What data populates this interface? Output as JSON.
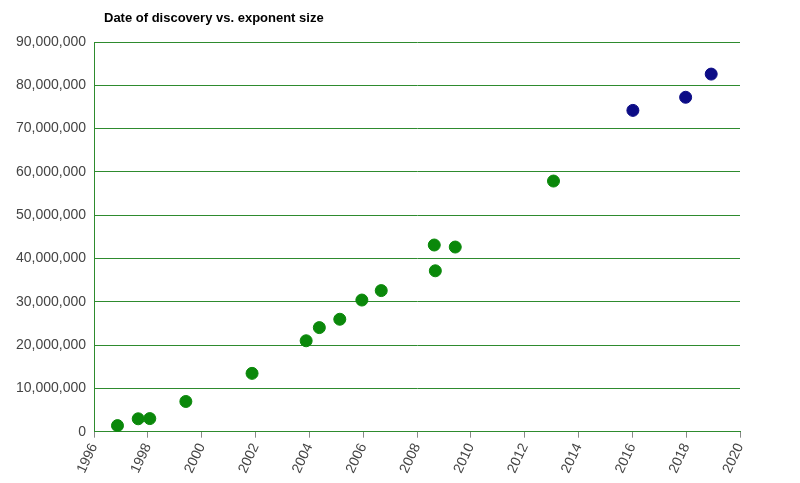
{
  "chart_data": {
    "type": "scatter",
    "title": "Date of discovery vs. exponent size",
    "series": [
      {
        "color": "#0a880a",
        "marker": "circle",
        "x": [
          1996.87,
          1997.64,
          1998.07,
          1999.41,
          2001.87,
          2003.88,
          2004.37,
          2005.13,
          2005.95,
          2006.67,
          2008.64,
          2008.68,
          2009.42,
          2013.07
        ],
        "values": [
          1398269,
          2976221,
          3021377,
          6972593,
          13466917,
          20996011,
          24036583,
          25964951,
          30402457,
          32582657,
          43112609,
          37156667,
          42643801,
          57885161
        ]
      },
      {
        "color": "#0c0c86",
        "marker": "circle",
        "x": [
          2016.02,
          2017.98,
          2018.93
        ],
        "values": [
          74207281,
          77232917,
          82589933
        ]
      }
    ],
    "xlim": [
      1996,
      2020
    ],
    "xticks": [
      1996,
      1998,
      2000,
      2002,
      2004,
      2006,
      2008,
      2010,
      2012,
      2014,
      2016,
      2018,
      2020
    ],
    "ylim": [
      0,
      90000000
    ],
    "yticks": [
      0,
      {
        "value": 10000000,
        "label": "10,000,000"
      },
      {
        "value": 20000000,
        "label": "20,000,000"
      },
      {
        "value": 30000000,
        "label": "30,000,000"
      },
      {
        "value": 40000000,
        "label": "40,000,000"
      },
      {
        "value": 50000000,
        "label": "50,000,000"
      },
      {
        "value": 60000000,
        "label": "60,000,000"
      },
      {
        "value": 70000000,
        "label": "70,000,000"
      },
      {
        "value": 80000000,
        "label": "80,000,000"
      },
      {
        "value": 90000000,
        "label": "90,000,000"
      }
    ],
    "grid": true
  }
}
